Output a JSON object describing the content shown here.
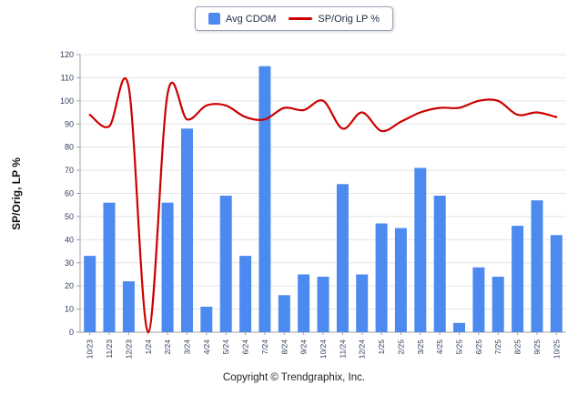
{
  "footer": {
    "copyright": "Copyright © Trendgraphix, Inc."
  },
  "colors": {
    "bar": "#4d8af0",
    "line": "#cc0000",
    "grid": "#e4e4e4",
    "axis": "#a0a0a0",
    "tick_text": "#2c3c5c"
  },
  "chart_data": {
    "type": "bar",
    "subtype": "bar+line combo",
    "categories": [
      "10/23",
      "11/23",
      "12/23",
      "1/24",
      "2/24",
      "3/24",
      "4/24",
      "5/24",
      "6/24",
      "7/24",
      "8/24",
      "9/24",
      "10/24",
      "11/24",
      "12/24",
      "1/25",
      "2/25",
      "3/25",
      "4/25",
      "5/25",
      "6/25",
      "7/25",
      "8/25",
      "9/25",
      "10/25"
    ],
    "series": [
      {
        "name": "Avg CDOM",
        "type": "bar",
        "values": [
          33,
          56,
          22,
          0,
          56,
          88,
          11,
          59,
          33,
          115,
          16,
          25,
          24,
          64,
          25,
          47,
          45,
          71,
          59,
          4,
          28,
          24,
          46,
          57,
          42
        ]
      },
      {
        "name": "SP/Orig LP %",
        "type": "line",
        "values": [
          94,
          89,
          106,
          0,
          103,
          92,
          98,
          98,
          93,
          92,
          97,
          96,
          100,
          88,
          95,
          87,
          91,
          95,
          97,
          97,
          100,
          100,
          94,
          95,
          93
        ]
      }
    ],
    "title": "",
    "xlabel": "",
    "ylabel": "SP/Orig, LP %",
    "ylim": [
      0,
      120
    ],
    "ytick_step": 10,
    "grid": "horizontal",
    "legend_position": "top-center"
  }
}
